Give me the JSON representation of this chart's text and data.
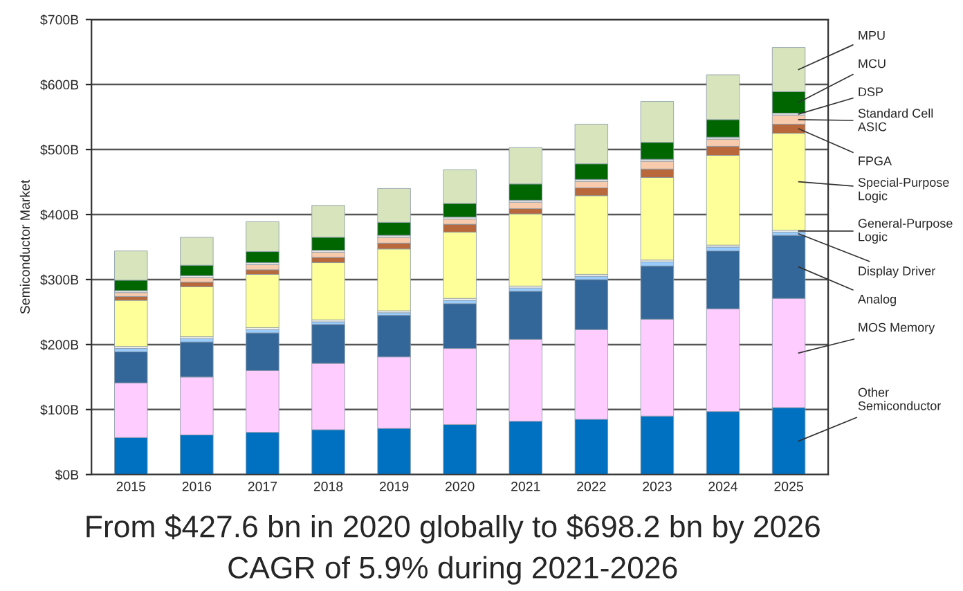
{
  "chart_data": {
    "type": "bar",
    "stacked": true,
    "ylabel": "Semiconductor Market",
    "categories": [
      "2015",
      "2016",
      "2017",
      "2018",
      "2019",
      "2020",
      "2021",
      "2022",
      "2023",
      "2024",
      "2025"
    ],
    "series": [
      {
        "name": "Other\nSemiconductor",
        "color": "#0070c0",
        "values": [
          57,
          61,
          65,
          69,
          71,
          77,
          82,
          85,
          90,
          97,
          103
        ]
      },
      {
        "name": "MOS Memory",
        "color": "#ffccff",
        "values": [
          84,
          89,
          95,
          102,
          110,
          117,
          126,
          138,
          149,
          158,
          168
        ]
      },
      {
        "name": "Analog",
        "color": "#336699",
        "values": [
          48,
          54,
          58,
          60,
          64,
          69,
          74,
          77,
          82,
          89,
          97
        ]
      },
      {
        "name": "Display Driver",
        "color": "#99ccff",
        "values": [
          5,
          5,
          5,
          4,
          4,
          5,
          5,
          5,
          6,
          6,
          5
        ]
      },
      {
        "name": "General-Purpose\nLogic",
        "color": "#f2f2f2",
        "values": [
          3,
          3,
          3,
          3,
          3,
          3,
          3,
          3,
          3,
          3,
          3
        ]
      },
      {
        "name": "Special-Purpose\nLogic",
        "color": "#ffff99",
        "values": [
          71,
          77,
          82,
          88,
          95,
          102,
          111,
          121,
          127,
          138,
          149
        ]
      },
      {
        "name": "FPGA",
        "color": "#b8683a",
        "values": [
          6,
          7,
          7,
          8,
          9,
          12,
          8,
          12,
          13,
          14,
          14
        ]
      },
      {
        "name": "Standard Cell\nASIC",
        "color": "#f8cbad",
        "values": [
          6,
          7,
          8,
          8,
          9,
          8,
          10,
          10,
          12,
          11,
          14
        ]
      },
      {
        "name": "DSP",
        "color": "#e6e6e6",
        "values": [
          3,
          3,
          3,
          3,
          3,
          3,
          3,
          3,
          3,
          3,
          3
        ]
      },
      {
        "name": "MCU",
        "color": "#006600",
        "values": [
          16,
          16,
          17,
          20,
          20,
          21,
          25,
          24,
          26,
          27,
          33
        ]
      },
      {
        "name": "MPU",
        "color": "#d7e4bc",
        "values": [
          45,
          43,
          46,
          49,
          52,
          52,
          56,
          61,
          63,
          69,
          68
        ]
      }
    ],
    "ylim": [
      0,
      700
    ],
    "yticks": [
      {
        "value": 0,
        "label": "$0B"
      },
      {
        "value": 100,
        "label": "$100B"
      },
      {
        "value": 200,
        "label": "$200B"
      },
      {
        "value": 300,
        "label": "$300B"
      },
      {
        "value": 400,
        "label": "$400B"
      },
      {
        "value": 500,
        "label": "$500B"
      },
      {
        "value": 600,
        "label": "$600B"
      },
      {
        "value": 700,
        "label": "$700B"
      }
    ],
    "grid": "y",
    "legend": "right",
    "annotations": [
      "From $427.6 bn in 2020 globally to $698.2 bn by 2026",
      "CAGR of 5.9% during 2021-2026"
    ]
  }
}
